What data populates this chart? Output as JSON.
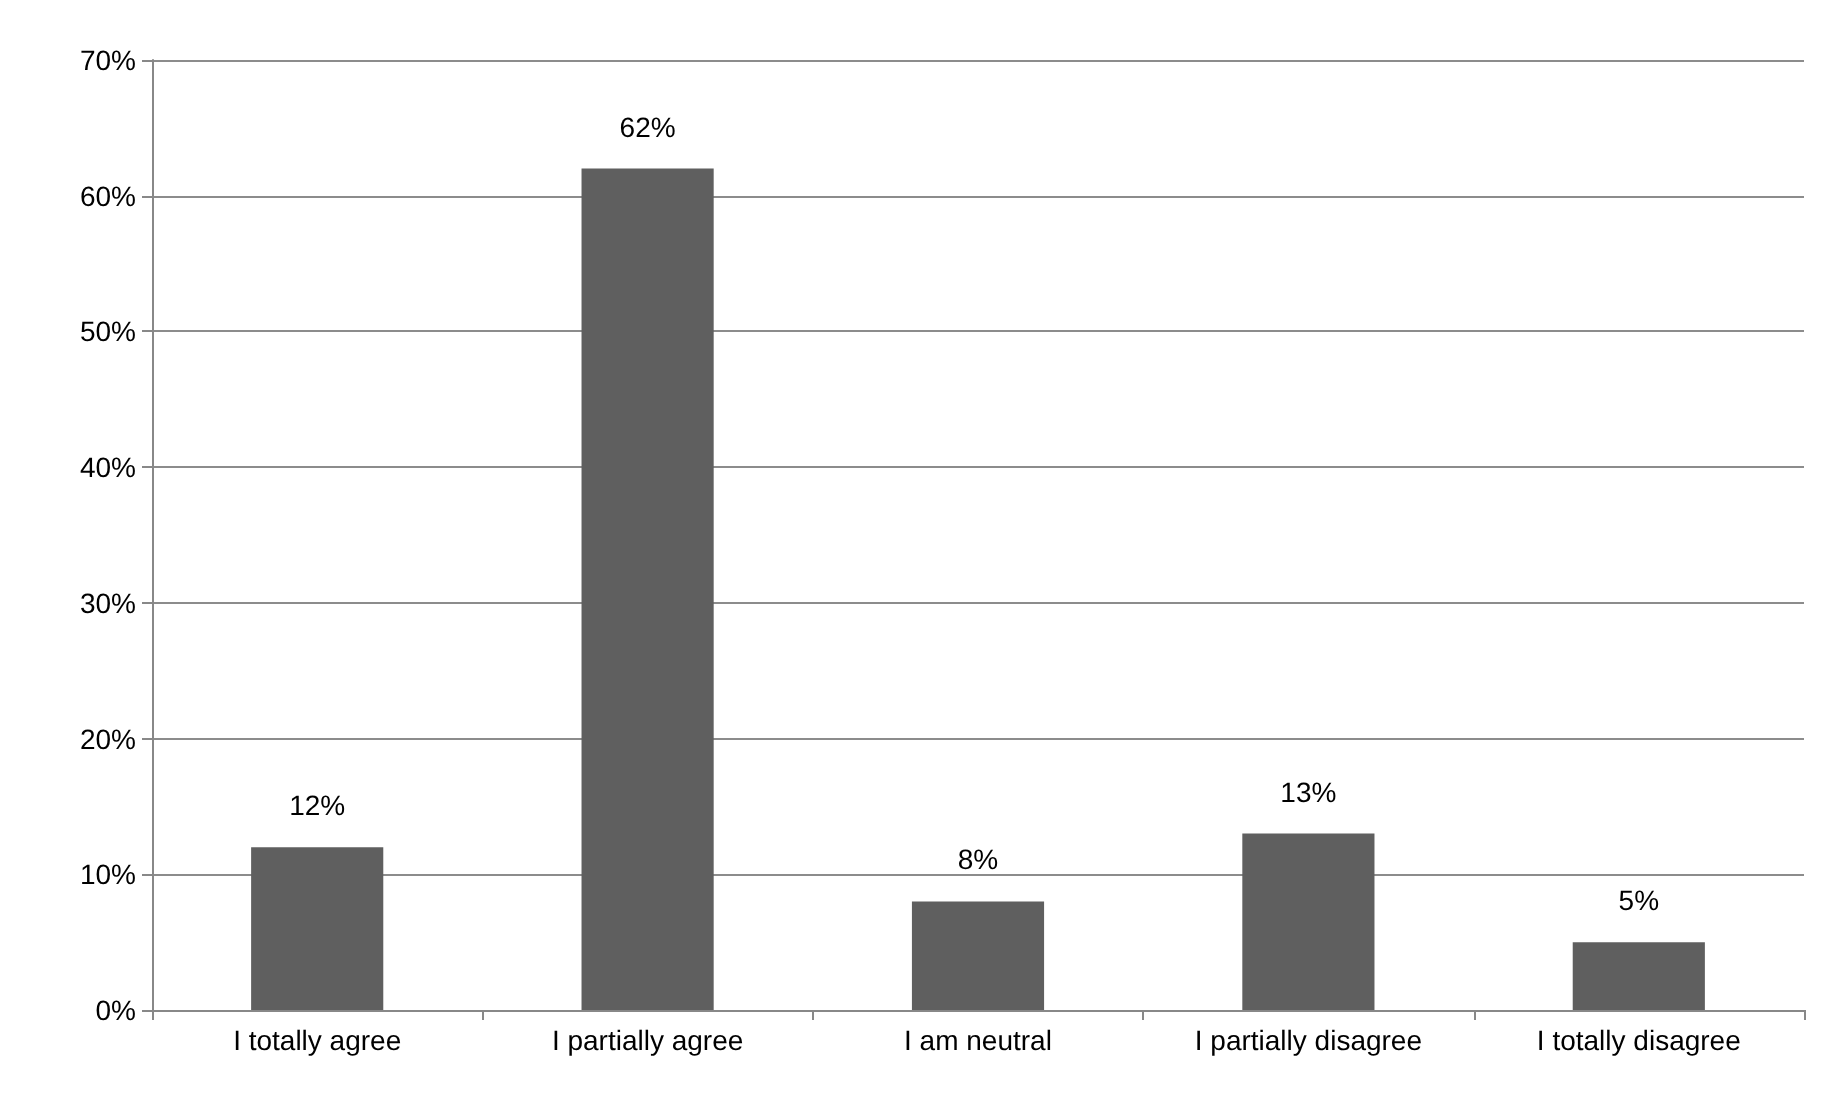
{
  "chart_data": {
    "type": "bar",
    "categories": [
      "I totally agree",
      "I partially agree",
      "I am neutral",
      "I partially disagree",
      "I totally disagree"
    ],
    "values": [
      12,
      62,
      8,
      13,
      5
    ],
    "value_labels": [
      "12%",
      "62%",
      "8%",
      "13%",
      "5%"
    ],
    "color": "#5f5f5f",
    "ylim": [
      0,
      70
    ],
    "yticks": [
      {
        "value": 0,
        "label": "0%"
      },
      {
        "value": 10,
        "label": "10%"
      },
      {
        "value": 20,
        "label": "20%"
      },
      {
        "value": 30,
        "label": "30%"
      },
      {
        "value": 40,
        "label": "40%"
      },
      {
        "value": 50,
        "label": "50%"
      },
      {
        "value": 60,
        "label": "60%"
      },
      {
        "value": 70,
        "label": "70%"
      }
    ],
    "grid": "y"
  }
}
